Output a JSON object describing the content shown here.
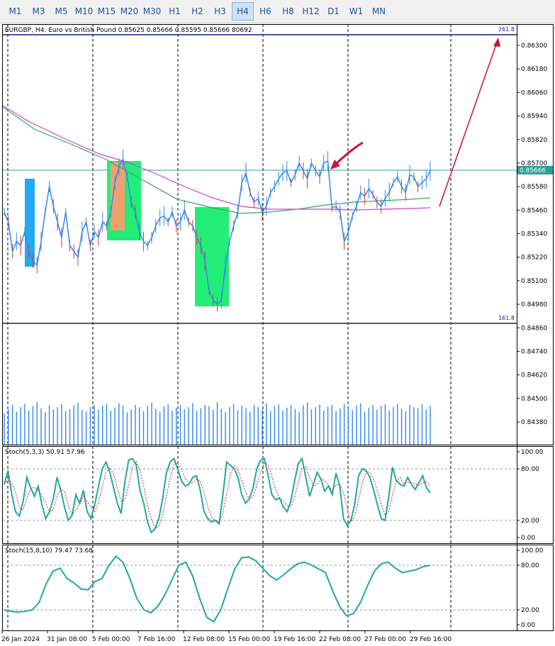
{
  "colors": {
    "price_up": "#3388ee",
    "price_down": "#dd3333",
    "ma_fast": "#30a860",
    "ma_slow": "#d040d0",
    "fib_line": "#1a1a7a",
    "h_line": "#2aa198",
    "stoch_main": "#20a8a0",
    "stoch_signal": "#cc2222",
    "arrow": "#cc1133",
    "box_green": "#22ee77",
    "box_blue": "#22aaee",
    "box_orange": "#f0a070",
    "grid_dash": "#000000"
  },
  "timeframes": [
    "M1",
    "M3",
    "M5",
    "M10",
    "M15",
    "M20",
    "M30",
    "H1",
    "H2",
    "H3",
    "H4",
    "H6",
    "H8",
    "H12",
    "D1",
    "W1",
    "MN"
  ],
  "active_timeframe": "H4",
  "chart_header": "EURGBP, H4:  Euro vs British Pound  0.85625 0.85666 0.85595 0.85666  80692",
  "fib_upper_label": "261.8",
  "fib_lower_label": "161.8",
  "current_price_label": "0.85666",
  "price_ticks": [
    "0.86300",
    "0.86180",
    "0.86060",
    "0.85940",
    "0.85820",
    "0.85700",
    "0.85580",
    "0.85460",
    "0.85340",
    "0.85220",
    "0.85100",
    "0.84980",
    "0.84860",
    "0.84740",
    "0.84620",
    "0.84500",
    "0.84380"
  ],
  "stoch1": {
    "title": "Stoch(5,3,3) 50.91 57.96",
    "levels": [
      "100.00",
      "80.00",
      "20.00",
      "0.00"
    ],
    "values": [
      62,
      78,
      50,
      30,
      25,
      42,
      70,
      58,
      48,
      60,
      38,
      22,
      30,
      45,
      70,
      55,
      35,
      20,
      26,
      50,
      40,
      55,
      30,
      22,
      38,
      60,
      80,
      88,
      76,
      58,
      40,
      28,
      65,
      90,
      92,
      85,
      55,
      40,
      18,
      6,
      10,
      22,
      45,
      75,
      88,
      92,
      80,
      66,
      60,
      62,
      70,
      72,
      55,
      30,
      22,
      18,
      20,
      16,
      50,
      88,
      84,
      80,
      70,
      50,
      40,
      45,
      58,
      80,
      90,
      92,
      72,
      50,
      44,
      46,
      36,
      30,
      42,
      66,
      86,
      92,
      70,
      48,
      62,
      76,
      68,
      54,
      60,
      50,
      75,
      60,
      22,
      14,
      20,
      40,
      72,
      80,
      78,
      70,
      55,
      38,
      22,
      20,
      48,
      82,
      66,
      62,
      60,
      70,
      62,
      56,
      64,
      72,
      58,
      52
    ]
  },
  "stoch2": {
    "title": "Stoch(15,8,10) 79.47 73.68",
    "levels": [
      "100.00",
      "80.00",
      "20.00",
      "0.00"
    ],
    "values": [
      20,
      18,
      17,
      18,
      20,
      30,
      55,
      72,
      76,
      62,
      56,
      48,
      47,
      58,
      62,
      80,
      92,
      84,
      62,
      35,
      20,
      16,
      25,
      40,
      60,
      80,
      84,
      65,
      35,
      10,
      4,
      20,
      48,
      75,
      90,
      91,
      86,
      76,
      66,
      60,
      67,
      75,
      82,
      84,
      80,
      75,
      70,
      46,
      25,
      12,
      15,
      30,
      52,
      72,
      82,
      84,
      76,
      70,
      72,
      74,
      78,
      80
    ]
  },
  "x_labels": [
    "26 Jan 2024",
    "31 Jan 08:00",
    "5 Feb 00:00",
    "7 Feb 16:00",
    "12 Feb 08:00",
    "15 Feb 00:00",
    "19 Feb 16:00",
    "22 Feb 08:00",
    "27 Feb 00:00",
    "29 Feb 16:00"
  ],
  "price_series": [
    0.8545,
    0.854,
    0.8525,
    0.853,
    0.8528,
    0.8535,
    0.8525,
    0.852,
    0.8518,
    0.853,
    0.8545,
    0.8558,
    0.8548,
    0.854,
    0.8532,
    0.8545,
    0.8528,
    0.8525,
    0.8522,
    0.8535,
    0.854,
    0.8528,
    0.8535,
    0.8532,
    0.854,
    0.8538,
    0.8545,
    0.856,
    0.8568,
    0.8572,
    0.8563,
    0.855,
    0.8545,
    0.8535,
    0.853,
    0.8528,
    0.8532,
    0.8538,
    0.8542,
    0.8543,
    0.854,
    0.8545,
    0.8538,
    0.854,
    0.8546,
    0.854,
    0.8538,
    0.8532,
    0.8528,
    0.852,
    0.8505,
    0.85,
    0.8498,
    0.85,
    0.8518,
    0.853,
    0.8538,
    0.8545,
    0.856,
    0.8565,
    0.8555,
    0.855,
    0.8552,
    0.8545,
    0.8548,
    0.8555,
    0.8558,
    0.8562,
    0.8565,
    0.8566,
    0.856,
    0.8564,
    0.857,
    0.8566,
    0.8562,
    0.857,
    0.8566,
    0.8563,
    0.857,
    0.8571,
    0.8547,
    0.8548,
    0.8545,
    0.853,
    0.8535,
    0.8543,
    0.8548,
    0.8555,
    0.8553,
    0.8557,
    0.8554,
    0.855,
    0.8548,
    0.8552,
    0.8555,
    0.856,
    0.8563,
    0.8558,
    0.8555,
    0.8564,
    0.8563,
    0.8558,
    0.856,
    0.8562,
    0.8566
  ],
  "volume_series": [
    0.55,
    0.62,
    0.7,
    0.58,
    0.66,
    0.72,
    0.6,
    0.68,
    0.75,
    0.64,
    0.57,
    0.7,
    0.62,
    0.66,
    0.71,
    0.59,
    0.63,
    0.69,
    0.74,
    0.61,
    0.58,
    0.66,
    0.7,
    0.62,
    0.68,
    0.72,
    0.6,
    0.65,
    0.73,
    0.69,
    0.57,
    0.62,
    0.7,
    0.66,
    0.59,
    0.68,
    0.74,
    0.63,
    0.58,
    0.67,
    0.71,
    0.6,
    0.65,
    0.7,
    0.62,
    0.66,
    0.73,
    0.59,
    0.64,
    0.7,
    0.68,
    0.61,
    0.75,
    0.63,
    0.57,
    0.66,
    0.72,
    0.6,
    0.69,
    0.64,
    0.58,
    0.7,
    0.66,
    0.62,
    0.73,
    0.59,
    0.68,
    0.71,
    0.6,
    0.65,
    0.7,
    0.63,
    0.58,
    0.69,
    0.74,
    0.62,
    0.66,
    0.71,
    0.6,
    0.67,
    0.7,
    0.59,
    0.64,
    0.72,
    0.66,
    0.61,
    0.69,
    0.73,
    0.58,
    0.65,
    0.7,
    0.62,
    0.68,
    0.71,
    0.6,
    0.66,
    0.72,
    0.63,
    0.59,
    0.7,
    0.66,
    0.64,
    0.71,
    0.62,
    0.68
  ]
}
